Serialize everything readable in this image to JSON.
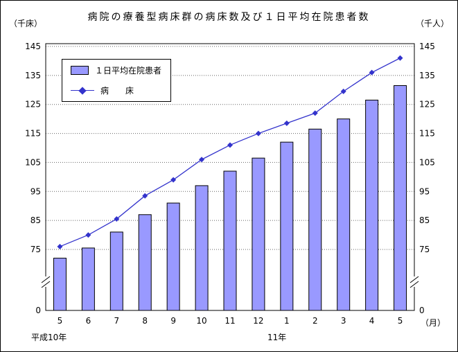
{
  "axis_units": {
    "left": "（千床）",
    "right": "（千人）",
    "x": "（月）"
  },
  "era_labels": {
    "heisei10": "平成10年",
    "year11": "11年"
  },
  "legend": {
    "bar_label": "１日平均在院患者",
    "line_label": "病　　床"
  },
  "colors": {
    "bar_fill": "#9999ff",
    "bar_stroke": "#000000",
    "line": "#3333cc",
    "grid": "#666666",
    "axis": "#000000",
    "background": "#ffffff"
  },
  "chart_data": {
    "type": "bar+line combo",
    "title": "病院の療養型病床群の病床数及び１日平均在院患者数",
    "categories": [
      "5",
      "6",
      "7",
      "8",
      "9",
      "10",
      "11",
      "12",
      "1",
      "2",
      "3",
      "4",
      "5"
    ],
    "series": [
      {
        "name": "１日平均在院患者",
        "type": "bar",
        "unit": "千人",
        "values": [
          72,
          75.5,
          81,
          87,
          91,
          97,
          102,
          106.5,
          112,
          116.5,
          120,
          126.5,
          131.5
        ]
      },
      {
        "name": "病床",
        "type": "line",
        "marker": "diamond",
        "unit": "千床",
        "values": [
          76,
          80,
          85.5,
          93.5,
          99,
          106,
          111,
          115,
          118.5,
          122,
          129.5,
          136,
          141
        ]
      }
    ],
    "y_ticks": [
      0,
      75,
      85,
      95,
      105,
      115,
      125,
      135,
      145
    ],
    "ylim": [
      0,
      145
    ],
    "y_axis_break": true,
    "grid": "dotted horizontal",
    "legend_position": "upper-left inside plot"
  }
}
